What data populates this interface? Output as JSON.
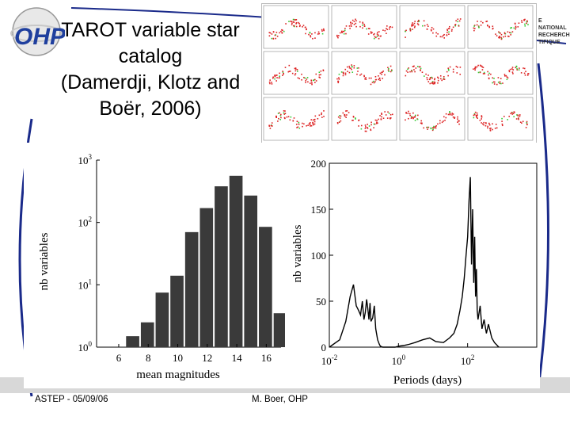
{
  "slide": {
    "title_lines": [
      "TAROT variable star",
      "catalog",
      "(Damerdji, Klotz and",
      "Boër, 2006)"
    ],
    "logo_text": "OHP",
    "institution_lines": [
      "E NATIONAL",
      "RECHERCHE",
      "TIFIQUE"
    ],
    "footer_left": "ASTEP - 05/09/06",
    "footer_center": "M. Boer, OHP",
    "colors": {
      "bar_fill": "#3a3a3a",
      "line": "#000000",
      "logo_blue": "#1f3f9e",
      "curve_blue": "#1a2a8a"
    }
  },
  "chart_data": [
    {
      "type": "bar",
      "title": "",
      "xlabel": "mean magnitudes",
      "ylabel": "nb variables",
      "yscale": "log",
      "ylim": [
        1,
        1000
      ],
      "xlim": [
        4.5,
        17
      ],
      "x_ticks": [
        "6",
        "8",
        "10",
        "12",
        "14",
        "16"
      ],
      "y_ticks": [
        "10^0",
        "10^1",
        "10^2",
        "10^3"
      ],
      "categories": [
        7,
        8,
        9,
        10,
        11,
        12,
        13,
        14,
        15,
        16,
        17
      ],
      "values": [
        1.5,
        2.5,
        7.5,
        14,
        70,
        170,
        380,
        560,
        270,
        85,
        3.5
      ]
    },
    {
      "type": "line",
      "title": "",
      "xlabel": "Periods (days)",
      "ylabel": "nb variables",
      "xscale": "log",
      "xlim": [
        0.01,
        10000
      ],
      "ylim": [
        0,
        200
      ],
      "x_ticks": [
        "10^-2",
        "10^0",
        "10^2"
      ],
      "y_ticks": [
        "0",
        "50",
        "100",
        "150",
        "200"
      ],
      "series": [
        {
          "x": [
            0.01,
            0.02,
            0.03,
            0.04,
            0.05,
            0.06,
            0.07,
            0.08,
            0.09,
            0.1,
            0.11,
            0.12,
            0.13,
            0.14,
            0.15,
            0.16,
            0.18,
            0.2,
            0.22,
            0.25,
            0.28,
            0.3,
            0.35,
            0.4,
            0.5,
            0.6,
            0.8,
            1,
            1.5,
            2,
            3,
            5,
            8,
            12,
            20,
            30,
            40,
            50,
            60,
            70,
            80,
            90,
            100,
            110,
            120,
            130,
            140,
            150,
            160,
            170,
            180,
            190,
            200,
            230,
            260,
            300,
            350,
            400,
            500,
            600,
            800
          ],
          "y": [
            0,
            8,
            28,
            55,
            68,
            45,
            40,
            35,
            50,
            30,
            38,
            52,
            42,
            30,
            48,
            28,
            32,
            45,
            20,
            8,
            3,
            1,
            0,
            0,
            0,
            0,
            0,
            1,
            2,
            3,
            5,
            8,
            10,
            6,
            5,
            10,
            15,
            25,
            40,
            55,
            75,
            100,
            120,
            160,
            185,
            90,
            150,
            70,
            120,
            55,
            85,
            40,
            30,
            45,
            20,
            30,
            15,
            25,
            10,
            5,
            0
          ]
        }
      ]
    }
  ]
}
